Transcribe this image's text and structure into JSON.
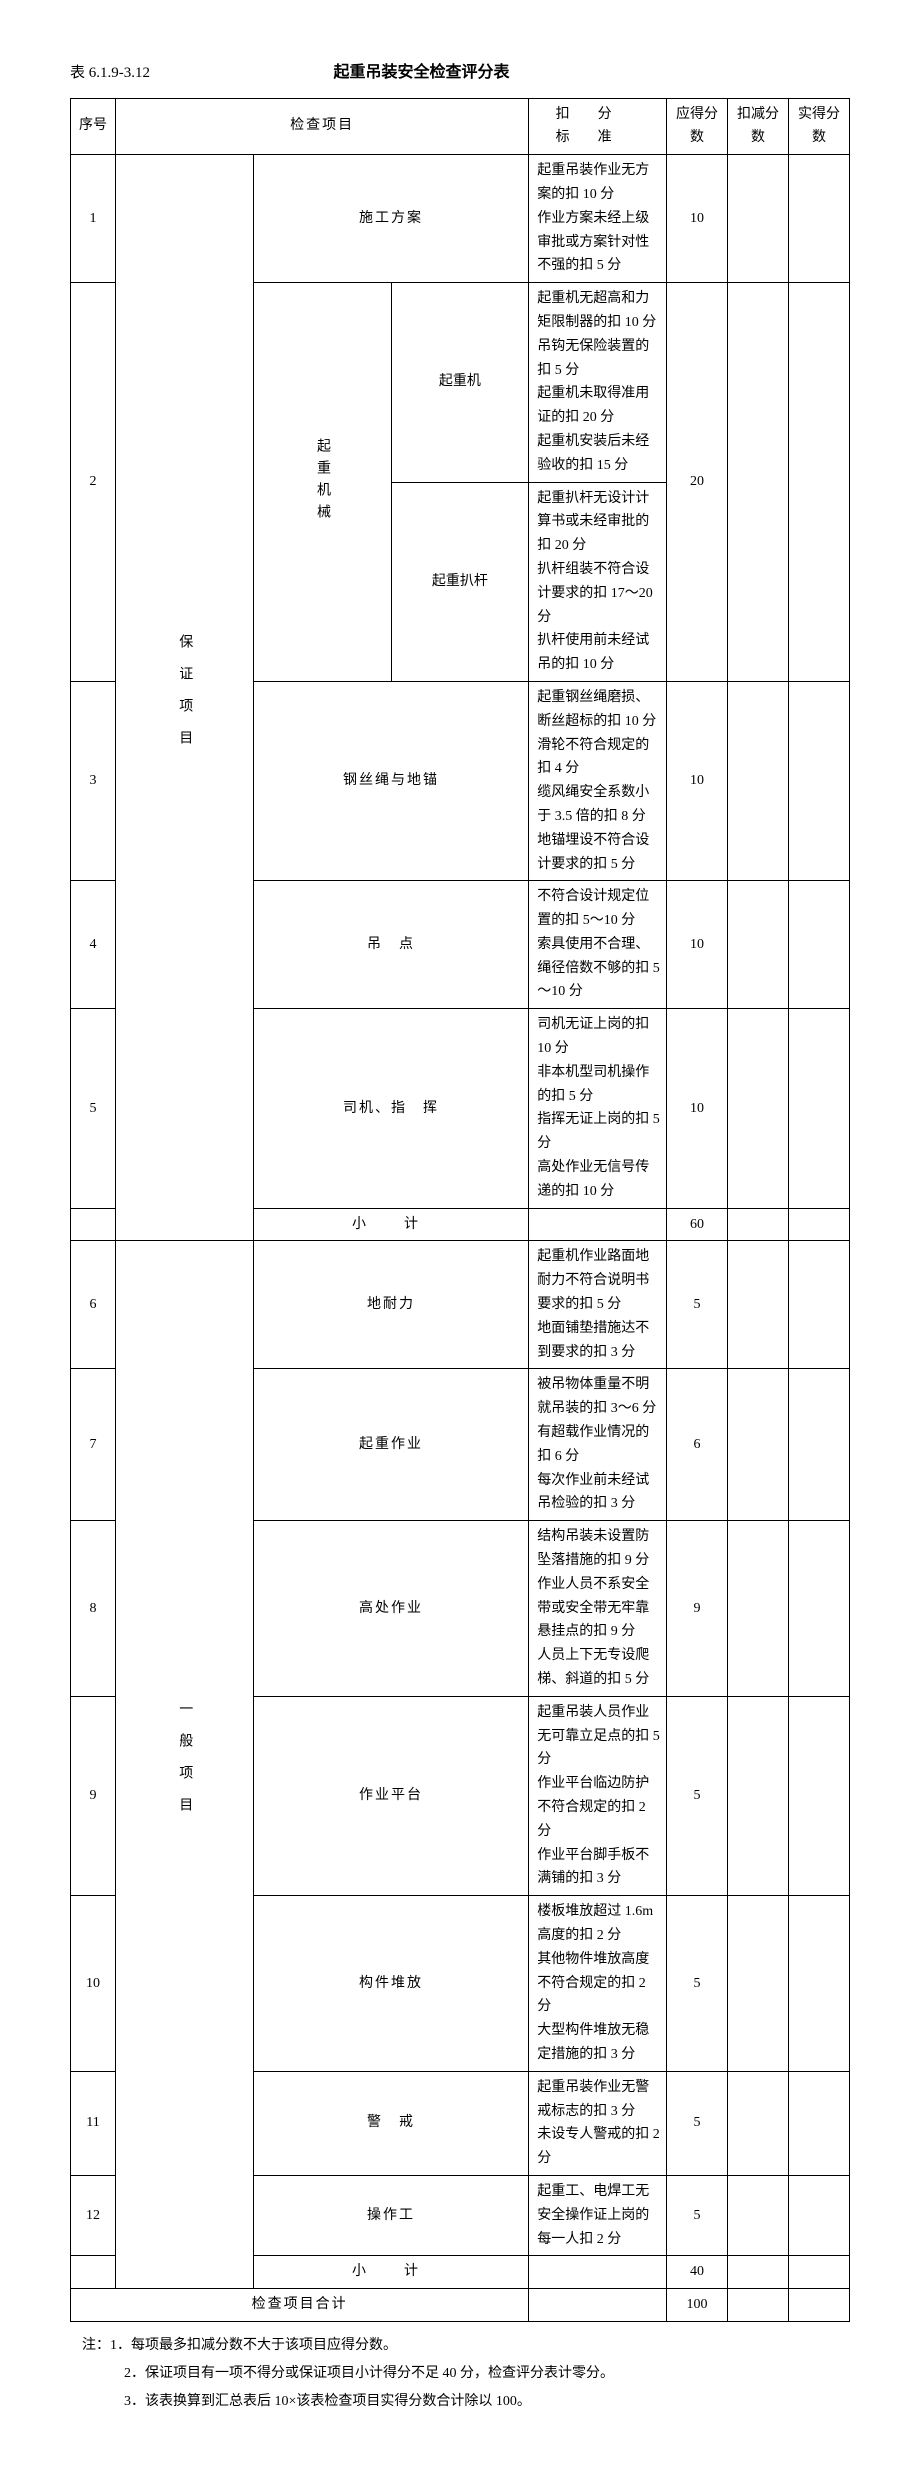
{
  "table_number": "表 6.1.9-3.12",
  "table_title": "起重吊装安全检查评分表",
  "headers": {
    "seq": "序号",
    "item": "检查项目",
    "criteria": "扣分标准",
    "should": "应得分数",
    "deduct": "扣减分数",
    "actual": "实得分数"
  },
  "category1": "保证项目",
  "category2": "一般项目",
  "subcat_crane": "起重机械",
  "rows": [
    {
      "seq": "1",
      "item": "施工方案",
      "criteria": "起重吊装作业无方案的扣 10 分\n作业方案未经上级审批或方案针对性不强的扣 5 分",
      "score": "10"
    },
    {
      "seq": "2",
      "item1": "起重机",
      "criteria1": "起重机无超高和力矩限制器的扣 10 分\n吊钩无保险装置的扣 5 分\n起重机未取得准用证的扣 20 分\n起重机安装后未经验收的扣 15 分",
      "item2": "起重扒杆",
      "criteria2": "起重扒杆无设计计算书或未经审批的扣 20 分\n扒杆组装不符合设计要求的扣 17～20 分\n扒杆使用前未经试吊的扣 10 分",
      "score": "20"
    },
    {
      "seq": "3",
      "item": "钢丝绳与地锚",
      "criteria": "起重钢丝绳磨损、断丝超标的扣 10 分\n滑轮不符合规定的扣 4 分\n缆风绳安全系数小于 3.5 倍的扣 8 分\n地锚埋设不符合设计要求的扣 5 分",
      "score": "10"
    },
    {
      "seq": "4",
      "item": "吊　点",
      "criteria": "不符合设计规定位置的扣 5～10 分\n索具使用不合理、绳径倍数不够的扣 5～10 分",
      "score": "10"
    },
    {
      "seq": "5",
      "item": "司机、指　挥",
      "criteria": "司机无证上岗的扣 10 分\n非本机型司机操作的扣 5 分\n指挥无证上岗的扣 5 分\n高处作业无信号传递的扣 10 分",
      "score": "10"
    },
    {
      "subtotal1": "小　计",
      "score": "60"
    },
    {
      "seq": "6",
      "item": "地耐力",
      "criteria": "起重机作业路面地耐力不符合说明书要求的扣 5 分\n地面铺垫措施达不到要求的扣 3 分",
      "score": "5"
    },
    {
      "seq": "7",
      "item": "起重作业",
      "criteria": "被吊物体重量不明就吊装的扣 3～6 分\n有超载作业情况的扣 6 分\n每次作业前未经试吊检验的扣 3 分",
      "score": "6"
    },
    {
      "seq": "8",
      "item": "高处作业",
      "criteria": "结构吊装未设置防坠落措施的扣 9 分\n作业人员不系安全带或安全带无牢靠悬挂点的扣 9 分\n人员上下无专设爬梯、斜道的扣 5 分",
      "score": "9"
    },
    {
      "seq": "9",
      "item": "作业平台",
      "criteria": "起重吊装人员作业无可靠立足点的扣 5 分\n作业平台临边防护不符合规定的扣 2 分\n作业平台脚手板不满铺的扣 3 分",
      "score": "5"
    },
    {
      "seq": "10",
      "item": "构件堆放",
      "criteria": "楼板堆放超过 1.6m 高度的扣 2 分\n其他物件堆放高度不符合规定的扣 2 分\n大型构件堆放无稳定措施的扣 3 分",
      "score": "5"
    },
    {
      "seq": "11",
      "item": "警　戒",
      "criteria": "起重吊装作业无警戒标志的扣 3 分\n未设专人警戒的扣 2 分",
      "score": "5"
    },
    {
      "seq": "12",
      "item": "操作工",
      "criteria": "起重工、电焊工无安全操作证上岗的每一人扣 2 分",
      "score": "5"
    },
    {
      "subtotal2": "小　计",
      "score": "40"
    },
    {
      "total": "检查项目合计",
      "score": "100"
    }
  ],
  "notes": {
    "n1": "注：1．每项最多扣减分数不大于该项目应得分数。",
    "n2": "2．保证项目有一项不得分或保证项目小计得分不足 40 分，检查评分表计零分。",
    "n3": "3．该表换算到汇总表后 10×该表检查项目实得分数合计除以 100。"
  }
}
